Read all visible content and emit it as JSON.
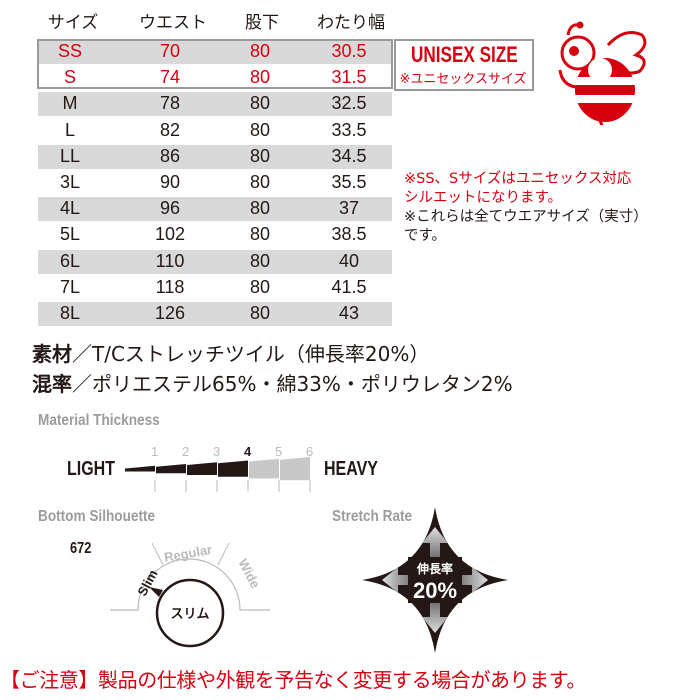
{
  "table": {
    "headers": [
      "サイズ",
      "ウエスト",
      "股下",
      "わたり幅"
    ],
    "rows": [
      [
        "SS",
        "70",
        "80",
        "30.5"
      ],
      [
        "S",
        "74",
        "80",
        "31.5"
      ],
      [
        "M",
        "78",
        "80",
        "32.5"
      ],
      [
        "L",
        "82",
        "80",
        "33.5"
      ],
      [
        "LL",
        "86",
        "80",
        "34.5"
      ],
      [
        "3L",
        "90",
        "80",
        "35.5"
      ],
      [
        "4L",
        "96",
        "80",
        "37"
      ],
      [
        "5L",
        "102",
        "80",
        "38.5"
      ],
      [
        "6L",
        "110",
        "80",
        "40"
      ],
      [
        "7L",
        "118",
        "80",
        "41.5"
      ],
      [
        "8L",
        "126",
        "80",
        "43"
      ]
    ]
  },
  "unisex": {
    "title": "UNISEX SIZE",
    "subtitle": "※ユニセックスサイズ",
    "mascot": "bee-mascot-icon"
  },
  "notes": {
    "red_line1": "※SS、Sサイズはユニセックス対応",
    "red_line2": "シルエットになります。",
    "line3": "※これらは全てウエアサイズ（実寸）",
    "line4": "です。"
  },
  "material": {
    "label1": "素材",
    "text1": "／T/Cストレッチツイル（伸長率20%）",
    "label2": "混率",
    "text2": "／ポリエステル65%・綿33%・ポリウレタン2%"
  },
  "thickness": {
    "title": "Material Thickness",
    "light": "LIGHT",
    "heavy": "HEAVY",
    "levels": [
      "1",
      "2",
      "3",
      "4",
      "5",
      "6"
    ],
    "value": 4
  },
  "silhouette": {
    "title": "Bottom Silhouette",
    "code": "672",
    "options": [
      "Slim",
      "Regular",
      "Wide"
    ],
    "selected": "Slim",
    "badge": "スリム"
  },
  "stretch": {
    "title": "Stretch Rate",
    "label": "伸長率",
    "value": "20%"
  },
  "footer": "【ご注意】製品の仕様や外観を予告なく変更する場合があります。",
  "colors": {
    "red": "#d7000f",
    "gray": "#d9d9d9",
    "dark": "#231815"
  }
}
